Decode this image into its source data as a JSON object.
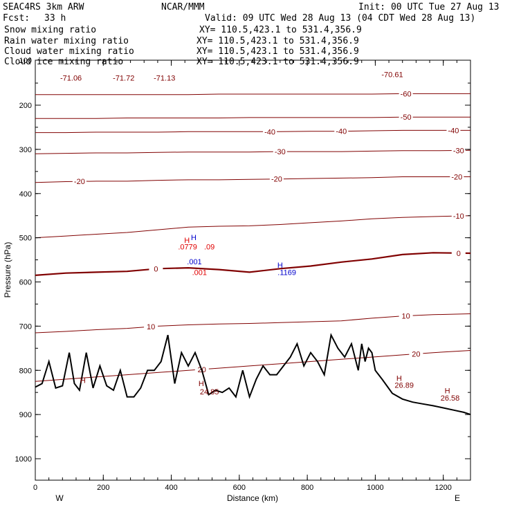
{
  "header": {
    "model": "SEAC4RS  3km ARW",
    "center": "NCAR/MMM",
    "init": "Init: 00 UTC Tue 27 Aug 13",
    "fcst_label": "Fcst:",
    "fcst_value": "33 h",
    "valid": "Valid: 09 UTC Wed 28 Aug 13 (04 CDT Wed 28 Aug 13)"
  },
  "fields": [
    {
      "name": "Snow mixing ratio",
      "xy": "XY= 110.5,423.1 to 531.4,356.9",
      "color": "#000000"
    },
    {
      "name": "Rain water mixing ratio",
      "xy": "XY= 110.5,423.1 to 531.4,356.9",
      "color": "#e00000"
    },
    {
      "name": "Cloud water mixing ratio",
      "xy": "XY= 110.5,423.1 to 531.4,356.9",
      "color": "#0000cc"
    },
    {
      "name": "Cloud ice mixing ratio",
      "xy": "XY= 110.5,423.1 to 531.4,356.9",
      "color": "#000000"
    }
  ],
  "chart_data": {
    "type": "line",
    "title": "",
    "xlabel": "Distance (km)",
    "ylabel": "Pressure (hPa)",
    "xlim": [
      0,
      1280
    ],
    "ylim": [
      1050,
      130
    ],
    "x_ticks": [
      0,
      200,
      400,
      600,
      800,
      1000,
      1200
    ],
    "y_ticks": [
      200,
      300,
      400,
      500,
      600,
      700,
      800,
      900,
      1000
    ],
    "y_top_tick": "100",
    "x_end_labels": {
      "left": "W",
      "right": "E"
    },
    "grid": false,
    "contour_color": "#800000",
    "terrain_color": "#000000",
    "isotherms": [
      {
        "value": 0,
        "pressure": [
          585,
          580,
          578,
          576,
          570,
          568,
          572,
          578,
          570,
          564,
          555,
          548,
          538,
          534,
          535
        ],
        "label_positions": [
          {
            "text": "0",
            "x": 355
          },
          {
            "text": "0",
            "x": 1245
          }
        ]
      },
      {
        "value": -10,
        "pressure": [
          500,
          496,
          492,
          488,
          482,
          476,
          474,
          473,
          470,
          466,
          462,
          457,
          454,
          452,
          450
        ],
        "label_positions": [
          {
            "text": "-10",
            "x": 1245
          }
        ]
      },
      {
        "value": -20,
        "pressure": [
          375,
          373,
          372,
          372,
          370,
          369,
          369,
          368,
          367,
          366,
          365,
          364,
          362,
          362,
          362
        ],
        "label_positions": [
          {
            "text": "-20",
            "x": 130
          },
          {
            "text": "-20",
            "x": 710
          },
          {
            "text": "-20",
            "x": 1240
          }
        ]
      },
      {
        "value": -30,
        "pressure": [
          310,
          309,
          308,
          308,
          307,
          306,
          306,
          306,
          305,
          305,
          305,
          304,
          303,
          303,
          302
        ],
        "label_positions": [
          {
            "text": "-30",
            "x": 720
          },
          {
            "text": "-30",
            "x": 1245
          }
        ]
      },
      {
        "value": -40,
        "pressure": [
          262,
          262,
          261,
          261,
          261,
          260,
          260,
          260,
          260,
          259,
          259,
          258,
          257,
          257,
          257
        ],
        "label_positions": [
          {
            "text": "-40",
            "x": 690
          },
          {
            "text": "-40",
            "x": 900
          },
          {
            "text": "-40",
            "x": 1230
          }
        ]
      },
      {
        "value": -50,
        "pressure": [
          230,
          230,
          230,
          229,
          229,
          229,
          229,
          228,
          228,
          228,
          228,
          228,
          227,
          227,
          227
        ],
        "label_positions": [
          {
            "text": "-50",
            "x": 1090
          }
        ]
      },
      {
        "value": -60,
        "pressure": [
          176,
          176,
          176,
          176,
          176,
          176,
          175,
          175,
          175,
          175,
          175,
          175,
          174,
          174,
          174
        ],
        "label_positions": [
          {
            "text": "-60",
            "x": 1090
          }
        ]
      },
      {
        "value": 10,
        "pressure": [
          715,
          712,
          708,
          705,
          700,
          697,
          695,
          694,
          692,
          690,
          688,
          682,
          677,
          674,
          672
        ],
        "label_positions": [
          {
            "text": "10",
            "x": 340
          },
          {
            "text": "10",
            "x": 1090
          }
        ]
      },
      {
        "value": 20,
        "pressure": [
          825,
          820,
          815,
          810,
          805,
          800,
          795,
          790,
          785,
          780,
          775,
          770,
          765,
          760,
          755
        ],
        "label_positions": [
          {
            "text": "20",
            "x": 490
          },
          {
            "text": "20",
            "x": 1120
          }
        ]
      }
    ],
    "isotherm_x": [
      0,
      90,
      180,
      270,
      360,
      450,
      540,
      630,
      720,
      810,
      900,
      990,
      1080,
      1170,
      1280
    ],
    "terrain": {
      "x": [
        0,
        20,
        40,
        60,
        80,
        100,
        115,
        130,
        150,
        170,
        190,
        210,
        230,
        250,
        270,
        290,
        310,
        330,
        350,
        370,
        390,
        410,
        430,
        450,
        470,
        490,
        510,
        530,
        550,
        570,
        590,
        610,
        630,
        650,
        670,
        690,
        710,
        730,
        750,
        770,
        790,
        810,
        830,
        850,
        870,
        890,
        910,
        930,
        950,
        960,
        970,
        980,
        990,
        1000,
        1020,
        1050,
        1080,
        1110,
        1140,
        1170,
        1200,
        1230,
        1260,
        1280
      ],
      "pressure": [
        838,
        830,
        780,
        840,
        835,
        760,
        830,
        845,
        760,
        840,
        790,
        835,
        845,
        800,
        860,
        860,
        840,
        800,
        800,
        780,
        720,
        830,
        760,
        790,
        760,
        800,
        855,
        845,
        850,
        840,
        860,
        800,
        860,
        820,
        790,
        810,
        810,
        790,
        770,
        740,
        790,
        760,
        780,
        810,
        720,
        750,
        770,
        740,
        800,
        740,
        780,
        750,
        760,
        800,
        820,
        852,
        865,
        872,
        876,
        880,
        885,
        890,
        895,
        900
      ]
    },
    "annotations": [
      {
        "text": "-71.06",
        "x": 105,
        "p": 138,
        "color": "#800000"
      },
      {
        "text": "-71.72",
        "x": 260,
        "p": 138,
        "color": "#800000"
      },
      {
        "text": "-71.13",
        "x": 380,
        "p": 138,
        "color": "#800000"
      },
      {
        "text": "-70.61",
        "x": 1050,
        "p": 130,
        "color": "#800000"
      },
      {
        "text": "H",
        "x": 140,
        "p": 822,
        "color": "#800000"
      },
      {
        "text": "H",
        "x": 488,
        "p": 829,
        "color": "#800000"
      },
      {
        "text": "24.85",
        "x": 512,
        "p": 848,
        "color": "#800000"
      },
      {
        "text": "H",
        "x": 1070,
        "p": 818,
        "color": "#800000"
      },
      {
        "text": "26.89",
        "x": 1085,
        "p": 833,
        "color": "#800000"
      },
      {
        "text": "H",
        "x": 1212,
        "p": 846,
        "color": "#800000"
      },
      {
        "text": "26.58",
        "x": 1220,
        "p": 862,
        "color": "#800000"
      },
      {
        "text": "H",
        "x": 446,
        "p": 505,
        "color": "#e00000"
      },
      {
        "text": ".0779",
        "x": 448,
        "p": 520,
        "color": "#e00000"
      },
      {
        "text": ".09",
        "x": 512,
        "p": 520,
        "color": "#e00000"
      },
      {
        "text": ".001",
        "x": 483,
        "p": 578,
        "color": "#e00000"
      },
      {
        "text": "H",
        "x": 466,
        "p": 499,
        "color": "#0000cc"
      },
      {
        "text": ".001",
        "x": 468,
        "p": 554,
        "color": "#0000cc"
      },
      {
        "text": "H",
        "x": 720,
        "p": 562,
        "color": "#0000cc"
      },
      {
        "text": ".1169",
        "x": 740,
        "p": 578,
        "color": "#0000cc"
      }
    ]
  }
}
